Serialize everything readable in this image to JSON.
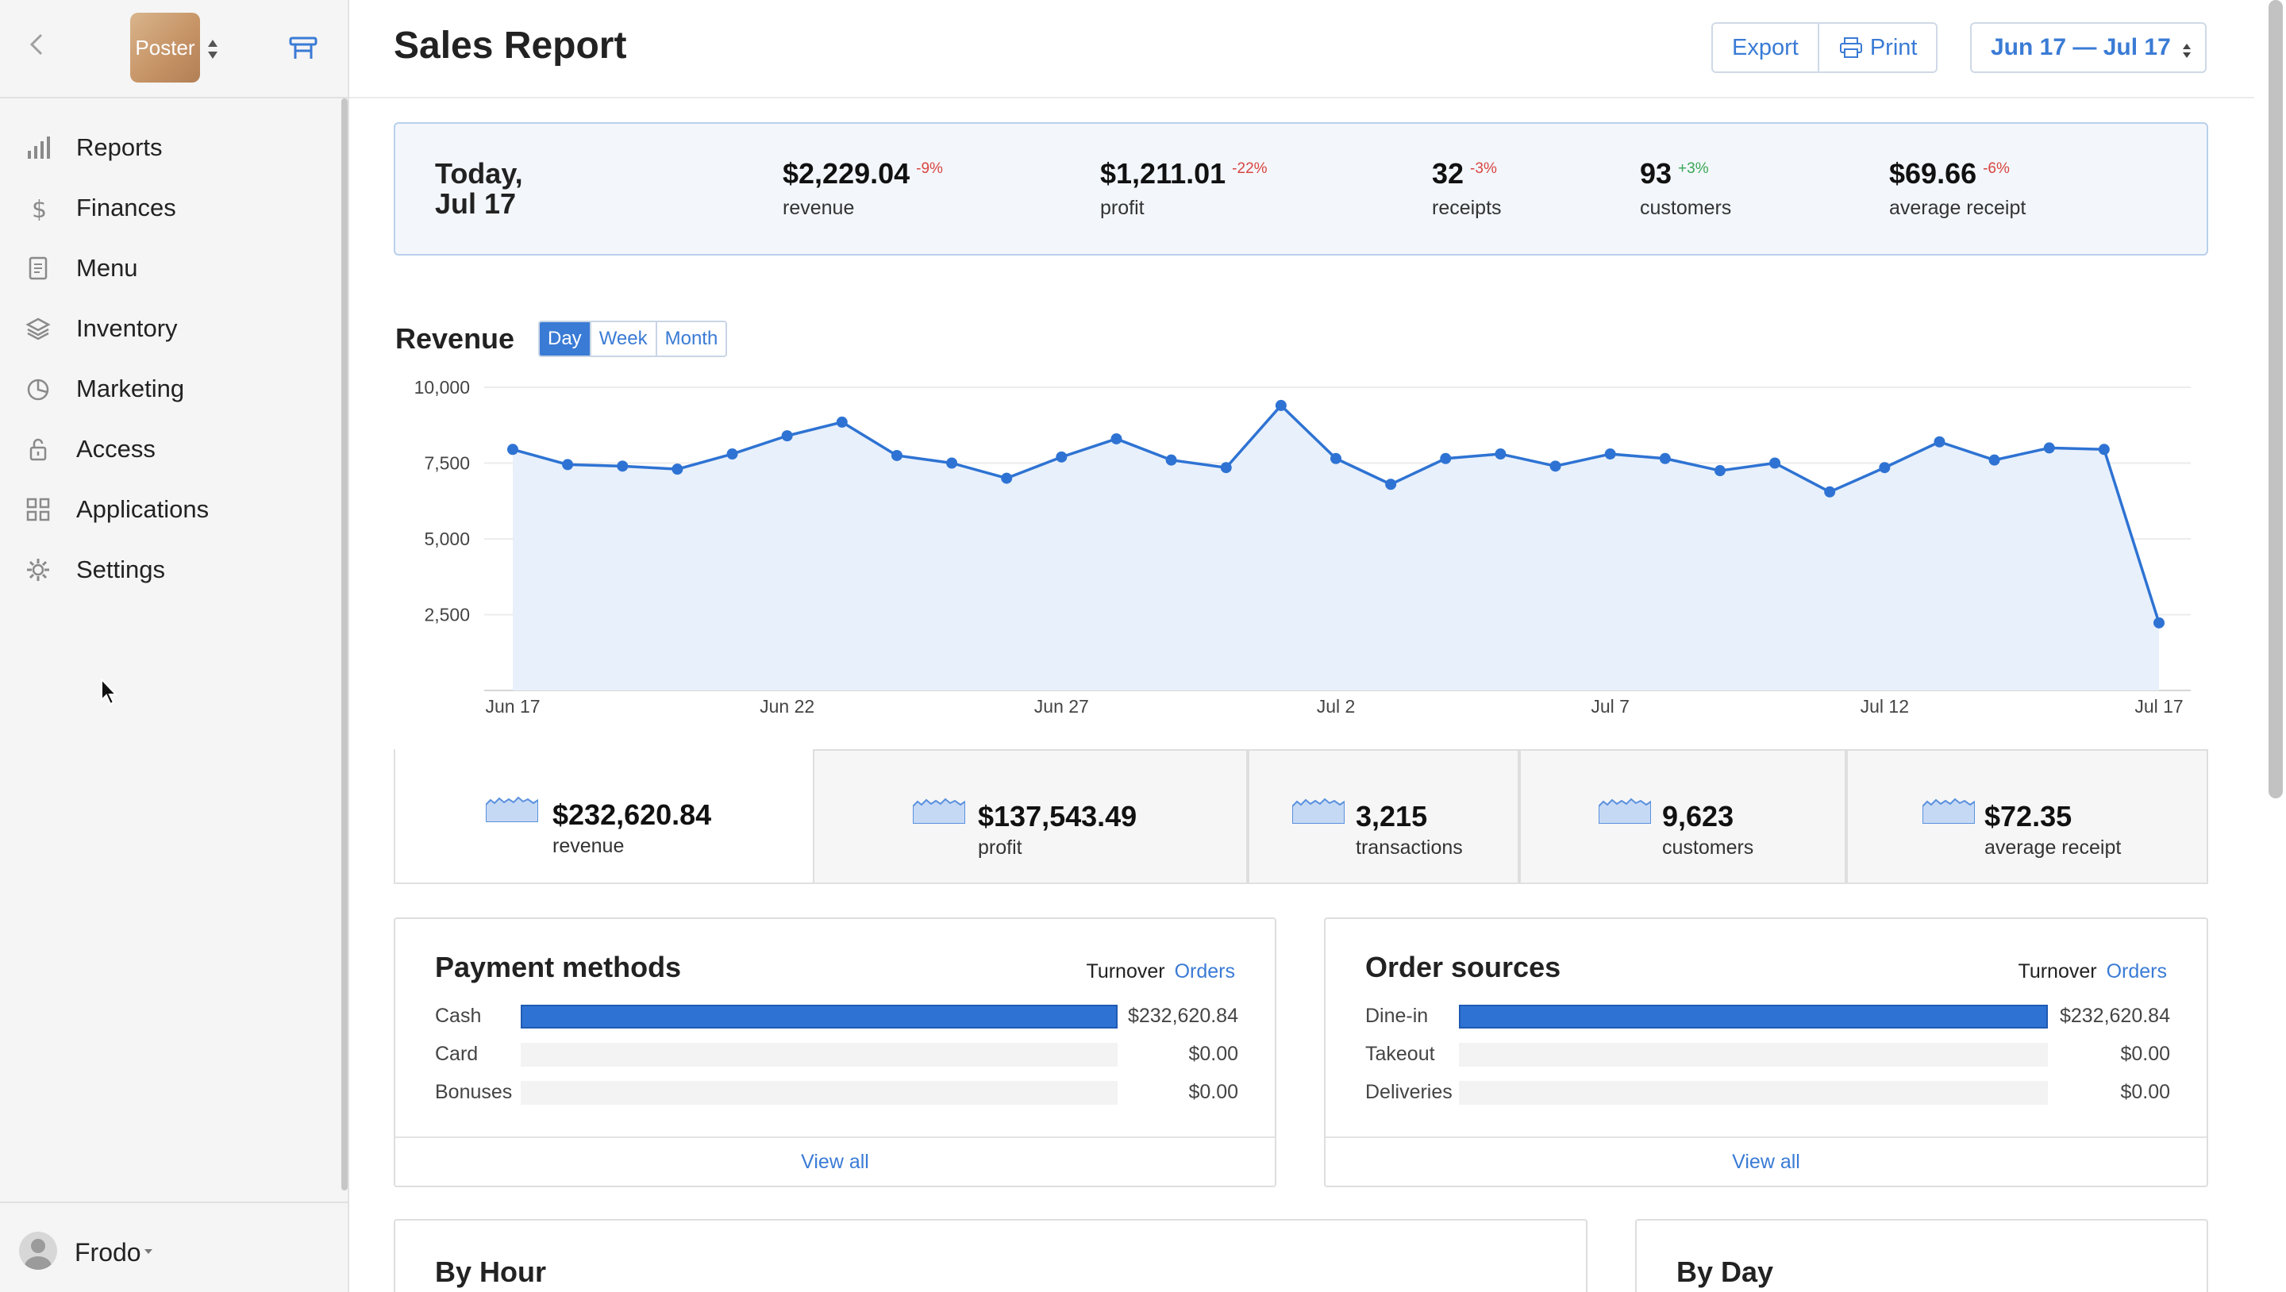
{
  "sidebar": {
    "logo_text": "Poster",
    "nav": [
      {
        "label": "Reports",
        "icon": "bar-chart-icon"
      },
      {
        "label": "Finances",
        "icon": "dollar-icon"
      },
      {
        "label": "Menu",
        "icon": "document-icon"
      },
      {
        "label": "Inventory",
        "icon": "layers-icon"
      },
      {
        "label": "Marketing",
        "icon": "pie-icon"
      },
      {
        "label": "Access",
        "icon": "lock-icon"
      },
      {
        "label": "Applications",
        "icon": "grid-icon"
      },
      {
        "label": "Settings",
        "icon": "gear-icon"
      }
    ],
    "user": {
      "name": "Frodo"
    }
  },
  "header": {
    "title": "Sales Report",
    "export_label": "Export",
    "print_label": "Print",
    "date_range": "Jun 17 — Jul 17"
  },
  "today": {
    "date_line1": "Today,",
    "date_line2": "Jul 17",
    "stats": [
      {
        "value": "$2,229.04",
        "change": "-9%",
        "label": "revenue",
        "trend": "neg"
      },
      {
        "value": "$1,211.01",
        "change": "-22%",
        "label": "profit",
        "trend": "neg"
      },
      {
        "value": "32",
        "change": "-3%",
        "label": "receipts",
        "trend": "neg"
      },
      {
        "value": "93",
        "change": "+3%",
        "label": "customers",
        "trend": "pos"
      },
      {
        "value": "$69.66",
        "change": "-6%",
        "label": "average receipt",
        "trend": "neg"
      }
    ]
  },
  "revenue": {
    "title": "Revenue",
    "periods": [
      "Day",
      "Week",
      "Month"
    ],
    "active_period": "Day"
  },
  "chart_data": {
    "type": "area",
    "title": "Revenue",
    "x": [
      "Jun 17",
      "Jun 18",
      "Jun 19",
      "Jun 20",
      "Jun 21",
      "Jun 22",
      "Jun 23",
      "Jun 24",
      "Jun 25",
      "Jun 26",
      "Jun 27",
      "Jun 28",
      "Jun 29",
      "Jun 30",
      "Jul 1",
      "Jul 2",
      "Jul 3",
      "Jul 4",
      "Jul 5",
      "Jul 6",
      "Jul 7",
      "Jul 8",
      "Jul 9",
      "Jul 10",
      "Jul 11",
      "Jul 12",
      "Jul 13",
      "Jul 14",
      "Jul 15",
      "Jul 16",
      "Jul 17"
    ],
    "x_tick_labels": [
      "Jun 17",
      "Jun 22",
      "Jun 27",
      "Jul 2",
      "Jul 7",
      "Jul 12",
      "Jul 17"
    ],
    "values": [
      7950,
      7450,
      7400,
      7300,
      7800,
      8400,
      8850,
      7750,
      7500,
      7000,
      7700,
      8300,
      7600,
      7350,
      9400,
      7650,
      6800,
      7650,
      7800,
      7400,
      7800,
      7650,
      7250,
      7500,
      6550,
      7350,
      8200,
      7600,
      8000,
      7950,
      2229
    ],
    "yticks": [
      2500,
      5000,
      7500,
      10000
    ],
    "ytick_labels": [
      "2,500",
      "5,000",
      "7,500",
      "10,000"
    ],
    "ylim": [
      0,
      10000
    ],
    "grid": true,
    "color": "#2e73d3",
    "fill": "#e8f0fb"
  },
  "totals": [
    {
      "value": "$232,620.84",
      "label": "revenue",
      "active": true
    },
    {
      "value": "$137,543.49",
      "label": "profit",
      "active": false
    },
    {
      "value": "3,215",
      "label": "transactions",
      "active": false
    },
    {
      "value": "9,623",
      "label": "customers",
      "active": false
    },
    {
      "value": "$72.35",
      "label": "average receipt",
      "active": false
    }
  ],
  "payment_methods": {
    "title": "Payment methods",
    "toggle_turnover": "Turnover",
    "toggle_orders": "Orders",
    "rows": [
      {
        "label": "Cash",
        "value": "$232,620.84",
        "share": 1.0
      },
      {
        "label": "Card",
        "value": "$0.00",
        "share": 0
      },
      {
        "label": "Bonuses",
        "value": "$0.00",
        "share": 0
      }
    ],
    "view_all": "View all"
  },
  "order_sources": {
    "title": "Order sources",
    "toggle_turnover": "Turnover",
    "toggle_orders": "Orders",
    "rows": [
      {
        "label": "Dine-in",
        "value": "$232,620.84",
        "share": 1.0
      },
      {
        "label": "Takeout",
        "value": "$0.00",
        "share": 0
      },
      {
        "label": "Deliveries",
        "value": "$0.00",
        "share": 0
      }
    ],
    "view_all": "View all"
  },
  "by_hour": {
    "title": "By Hour"
  },
  "by_day": {
    "title": "By Day"
  },
  "colors": {
    "accent": "#3a7bd5",
    "bar": "#2e73d3",
    "negative": "#d9443f",
    "positive": "#3aa655"
  }
}
